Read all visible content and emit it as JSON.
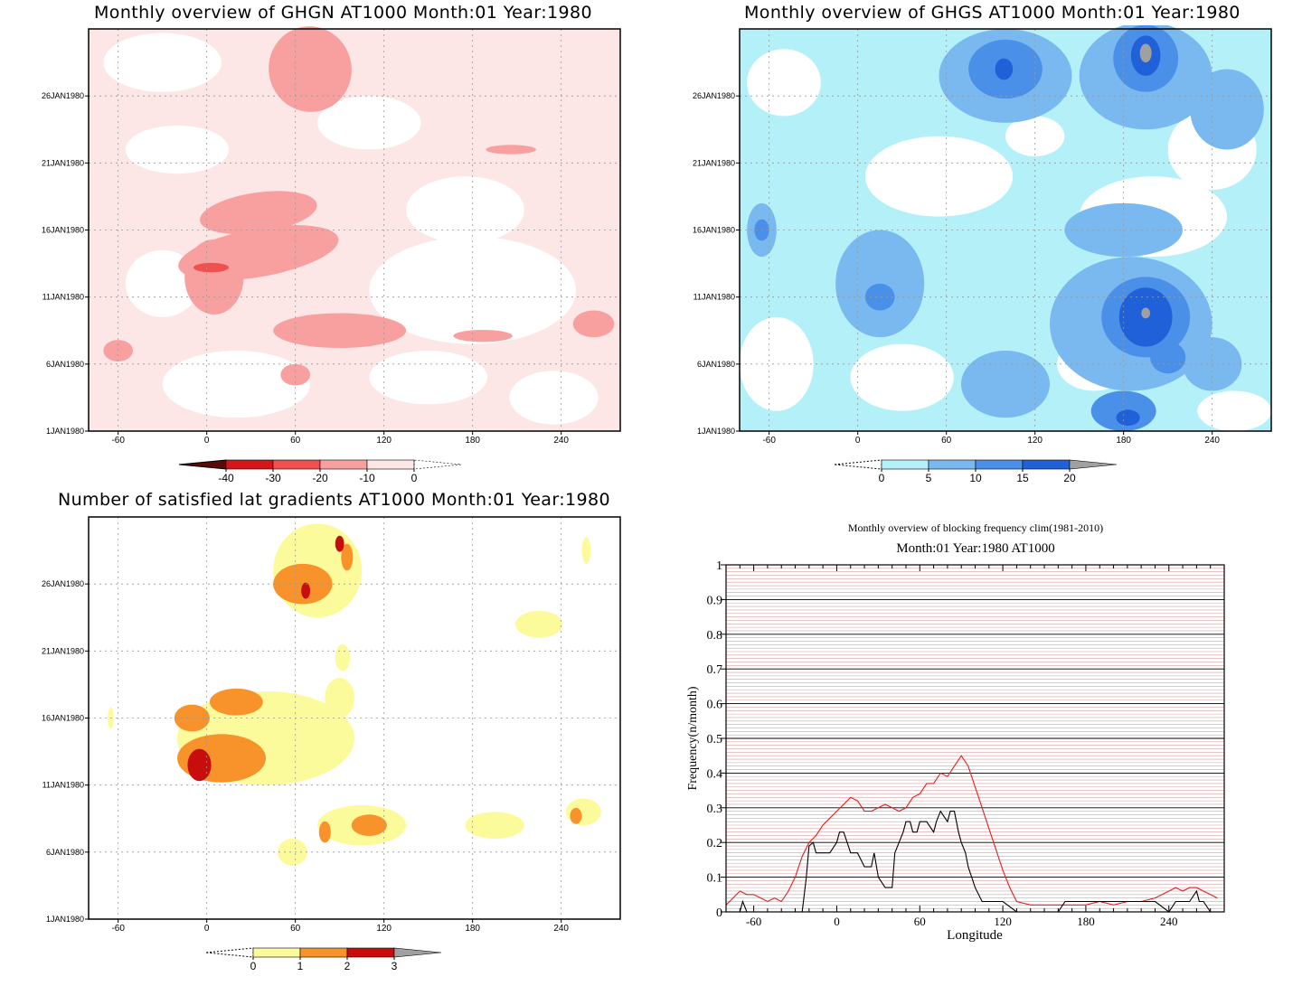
{
  "colors": {
    "reds": [
      "#5a0a0a",
      "#d4161b",
      "#f05050",
      "#f8a0a0",
      "#fde6e6"
    ],
    "blues": [
      "#b4f0f8",
      "#7ab8f0",
      "#4a90e8",
      "#2060d8",
      "#a0a0a0"
    ],
    "yellows": [
      "#fbfb9c",
      "#f7932a",
      "#c80d0d",
      "#a0a0a0"
    ],
    "line_red": "#e02020",
    "line_black": "#000000",
    "grid_pink": "#d8a0a0"
  },
  "panel1": {
    "title": "Monthly overview of GHGN AT1000 Month:01 Year:1980",
    "colorbar_labels": [
      "-40",
      "-30",
      "-20",
      "-10",
      "0"
    ]
  },
  "panel2": {
    "title": "Monthly overview of GHGS AT1000 Month:01 Year:1980",
    "colorbar_labels": [
      "0",
      "5",
      "10",
      "15",
      "20"
    ]
  },
  "panel3": {
    "title": "Number of satisfied lat gradients AT1000 Month:01 Year:1980",
    "colorbar_labels": [
      "0",
      "1",
      "2",
      "3"
    ]
  },
  "panel4": {
    "title": "Monthly overview of blocking frequency clim(1981-2010)",
    "subtitle": "Month:01 Year:1980  AT1000",
    "xlabel": "Longitude",
    "ylabel": "Frequency(n/month)"
  },
  "chart_data": [
    {
      "type": "heatmap",
      "title": "Monthly overview of GHGN AT1000 Month:01 Year:1980",
      "x_ticks": [
        "-60",
        "0",
        "60",
        "120",
        "180",
        "240"
      ],
      "y_ticks": [
        "1JAN1980",
        "6JAN1980",
        "11JAN1980",
        "16JAN1980",
        "21JAN1980",
        "26JAN1980"
      ],
      "xlim": [
        -80,
        280
      ],
      "ylim": [
        1,
        31
      ],
      "colorbar": [
        "-40",
        "-30",
        "-20",
        "-10",
        "0"
      ],
      "features": [
        {
          "lon": 70,
          "day": 28,
          "value": -15
        },
        {
          "lon": 35,
          "day": 17,
          "value": -15
        },
        {
          "lon": 50,
          "day": 14.5,
          "value": -15
        },
        {
          "lon": 5,
          "day": 13,
          "value": -25
        },
        {
          "lon": 90,
          "day": 8,
          "value": -12
        },
        {
          "lon": 262,
          "day": 9,
          "value": -12
        },
        {
          "lon": 200,
          "day": 21.8,
          "value": -12
        },
        {
          "lon": 60,
          "day": 5,
          "value": -12
        },
        {
          "lon": -60,
          "day": 7,
          "value": -12
        }
      ]
    },
    {
      "type": "heatmap",
      "title": "Monthly overview of GHGS AT1000 Month:01 Year:1980",
      "x_ticks": [
        "-60",
        "0",
        "60",
        "120",
        "180",
        "240"
      ],
      "y_ticks": [
        "1JAN1980",
        "6JAN1980",
        "11JAN1980",
        "16JAN1980",
        "21JAN1980",
        "26JAN1980"
      ],
      "xlim": [
        -80,
        280
      ],
      "ylim": [
        1,
        31
      ],
      "colorbar": [
        "0",
        "5",
        "10",
        "15",
        "20"
      ],
      "features": [
        {
          "lon": 99,
          "day": 28,
          "value": 17
        },
        {
          "lon": 195,
          "day": 29,
          "value": 21
        },
        {
          "lon": 195,
          "day": 9.5,
          "value": 21
        },
        {
          "lon": 180,
          "day": 2,
          "value": 16
        },
        {
          "lon": 210,
          "day": 6,
          "value": 12
        },
        {
          "lon": 10,
          "day": 11,
          "value": 12
        },
        {
          "lon": -65,
          "day": 16,
          "value": 12
        }
      ]
    },
    {
      "type": "heatmap",
      "title": "Number of satisfied lat gradients AT1000 Month:01 Year:1980",
      "x_ticks": [
        "-60",
        "0",
        "60",
        "120",
        "180",
        "240"
      ],
      "y_ticks": [
        "1JAN1980",
        "6JAN1980",
        "11JAN1980",
        "16JAN1980",
        "21JAN1980",
        "26JAN1980"
      ],
      "xlim": [
        -80,
        280
      ],
      "ylim": [
        1,
        31
      ],
      "colorbar": [
        "0",
        "1",
        "2",
        "3"
      ],
      "features": [
        {
          "lon": 65,
          "day": 26,
          "value": 3
        },
        {
          "lon": -5,
          "day": 12.5,
          "value": 3
        },
        {
          "lon": 30,
          "day": 16.5,
          "value": 2
        },
        {
          "lon": 110,
          "day": 8,
          "value": 2
        },
        {
          "lon": 250,
          "day": 8.7,
          "value": 2
        },
        {
          "lon": 225,
          "day": 23,
          "value": 1
        },
        {
          "lon": 195,
          "day": 8,
          "value": 1
        },
        {
          "lon": 60,
          "day": 6,
          "value": 1
        }
      ]
    },
    {
      "type": "line",
      "title": "Monthly overview of blocking frequency clim(1981-2010)",
      "subtitle": "Month:01 Year:1980  AT1000",
      "xlabel": "Longitude",
      "ylabel": "Frequency(n/month)",
      "xlim": [
        -80,
        280
      ],
      "ylim": [
        0,
        1
      ],
      "x_ticks": [
        "-60",
        "0",
        "60",
        "120",
        "180",
        "240"
      ],
      "y_ticks": [
        "0",
        "0.1",
        "0.2",
        "0.3",
        "0.4",
        "0.5",
        "0.6",
        "0.7",
        "0.8",
        "0.9",
        "1"
      ],
      "series": [
        {
          "color": "#e02020",
          "x": [
            -80,
            -75,
            -70,
            -65,
            -60,
            -55,
            -50,
            -45,
            -40,
            -35,
            -30,
            -25,
            -20,
            -15,
            -10,
            -5,
            0,
            5,
            10,
            15,
            20,
            25,
            30,
            35,
            40,
            45,
            50,
            55,
            60,
            65,
            70,
            75,
            80,
            85,
            90,
            95,
            100,
            105,
            110,
            115,
            120,
            125,
            130,
            140,
            150,
            160,
            170,
            180,
            190,
            200,
            210,
            220,
            230,
            240,
            245,
            250,
            255,
            260,
            265,
            270,
            275
          ],
          "values": [
            0.02,
            0.04,
            0.06,
            0.05,
            0.05,
            0.04,
            0.03,
            0.04,
            0.03,
            0.06,
            0.1,
            0.16,
            0.2,
            0.22,
            0.25,
            0.27,
            0.29,
            0.31,
            0.33,
            0.32,
            0.29,
            0.29,
            0.3,
            0.31,
            0.3,
            0.29,
            0.3,
            0.33,
            0.34,
            0.37,
            0.37,
            0.4,
            0.39,
            0.42,
            0.45,
            0.42,
            0.36,
            0.3,
            0.24,
            0.18,
            0.12,
            0.07,
            0.03,
            0.02,
            0.02,
            0.02,
            0.02,
            0.02,
            0.03,
            0.02,
            0.03,
            0.03,
            0.04,
            0.06,
            0.07,
            0.06,
            0.07,
            0.07,
            0.06,
            0.05,
            0.04
          ]
        },
        {
          "color": "#000000",
          "x": [
            -80,
            -70,
            -68,
            -65,
            -40,
            -25,
            -22,
            -20,
            -17,
            -15,
            -10,
            -5,
            0,
            2,
            5,
            10,
            12,
            15,
            20,
            25,
            27,
            30,
            35,
            40,
            42,
            45,
            48,
            50,
            53,
            55,
            58,
            60,
            62,
            65,
            70,
            72,
            75,
            80,
            82,
            85,
            88,
            90,
            93,
            95,
            100,
            105,
            110,
            115,
            120,
            130,
            140,
            160,
            165,
            170,
            180,
            200,
            220,
            230,
            240,
            245,
            250,
            255,
            260,
            262,
            265,
            270,
            275
          ],
          "values": [
            0,
            0,
            0.03,
            0,
            0,
            0,
            0.1,
            0.19,
            0.2,
            0.17,
            0.17,
            0.17,
            0.2,
            0.23,
            0.23,
            0.17,
            0.17,
            0.17,
            0.13,
            0.13,
            0.17,
            0.1,
            0.07,
            0.07,
            0.17,
            0.2,
            0.23,
            0.26,
            0.26,
            0.23,
            0.23,
            0.26,
            0.26,
            0.26,
            0.23,
            0.26,
            0.29,
            0.26,
            0.29,
            0.29,
            0.23,
            0.2,
            0.17,
            0.13,
            0.07,
            0.03,
            0.03,
            0.03,
            0.03,
            0,
            0,
            0,
            0.03,
            0.03,
            0.03,
            0.03,
            0.03,
            0.03,
            0,
            0.03,
            0.03,
            0.03,
            0.06,
            0.03,
            0.03,
            0,
            0
          ]
        }
      ]
    }
  ]
}
